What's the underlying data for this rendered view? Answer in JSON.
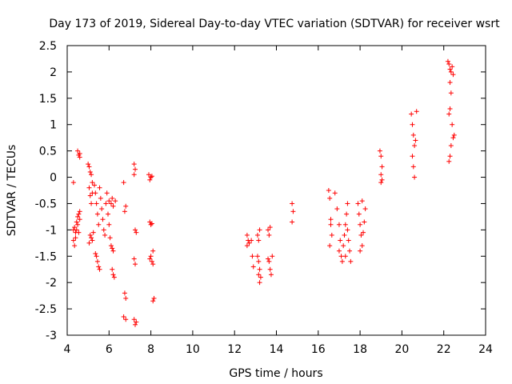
{
  "chart_data": {
    "type": "scatter",
    "title": "Day 173 of 2019, Sidereal Day-to-day VTEC variation (SDTVAR) for receiver wsrt",
    "xlabel": "GPS time / hours",
    "ylabel": "SDTVAR / TECUs",
    "xlim": [
      4,
      24
    ],
    "ylim": [
      -3,
      2.5
    ],
    "xticks": [
      4,
      6,
      8,
      10,
      12,
      14,
      16,
      18,
      20,
      22,
      24
    ],
    "yticks": [
      -3,
      -2.5,
      -2,
      -1.5,
      -1,
      -0.5,
      0,
      0.5,
      1,
      1.5,
      2,
      2.5
    ],
    "xtick_labels": [
      "4",
      "6",
      "8",
      "10",
      "12",
      "14",
      "16",
      "18",
      "20",
      "22",
      "24"
    ],
    "ytick_labels": [
      "-3",
      "-2.5",
      "-2",
      "-1.5",
      "-1",
      "-0.5",
      "0",
      "0.5",
      "1",
      "1.5",
      "2",
      "2.5"
    ],
    "marker": "plus",
    "color": "#ff0000",
    "series": [
      {
        "name": "SDTVAR",
        "points": [
          [
            4.3,
            -0.1
          ],
          [
            4.3,
            -1.0
          ],
          [
            4.3,
            -1.2
          ],
          [
            4.35,
            -0.95
          ],
          [
            4.35,
            -1.3
          ],
          [
            4.4,
            -1.05
          ],
          [
            4.4,
            -1.15
          ],
          [
            4.45,
            -0.85
          ],
          [
            4.45,
            -1.0
          ],
          [
            4.5,
            -0.75
          ],
          [
            4.5,
            -0.9
          ],
          [
            4.55,
            -0.7
          ],
          [
            4.55,
            -1.05
          ],
          [
            4.6,
            -0.8
          ],
          [
            4.6,
            -0.65
          ],
          [
            4.5,
            0.5
          ],
          [
            4.55,
            0.42
          ],
          [
            4.6,
            0.45
          ],
          [
            4.6,
            0.38
          ],
          [
            5.0,
            0.25
          ],
          [
            5.05,
            0.2
          ],
          [
            5.1,
            0.1
          ],
          [
            5.15,
            0.05
          ],
          [
            5.2,
            -0.1
          ],
          [
            5.05,
            -0.2
          ],
          [
            5.1,
            -0.35
          ],
          [
            5.15,
            -0.5
          ],
          [
            5.2,
            -0.3
          ],
          [
            5.1,
            -1.1
          ],
          [
            5.15,
            -1.15
          ],
          [
            5.2,
            -1.2
          ],
          [
            5.05,
            -1.25
          ],
          [
            5.25,
            -1.05
          ],
          [
            5.3,
            -0.15
          ],
          [
            5.35,
            -0.3
          ],
          [
            5.4,
            -0.5
          ],
          [
            5.45,
            -0.7
          ],
          [
            5.5,
            -0.9
          ],
          [
            5.4,
            -1.5
          ],
          [
            5.45,
            -1.6
          ],
          [
            5.5,
            -1.7
          ],
          [
            5.55,
            -1.75
          ],
          [
            5.35,
            -1.45
          ],
          [
            5.55,
            -0.2
          ],
          [
            5.6,
            -0.4
          ],
          [
            5.65,
            -0.6
          ],
          [
            5.7,
            -0.8
          ],
          [
            5.75,
            -1.0
          ],
          [
            5.8,
            -1.1
          ],
          [
            5.85,
            -0.5
          ],
          [
            5.9,
            -0.3
          ],
          [
            5.95,
            -0.7
          ],
          [
            6.0,
            -0.9
          ],
          [
            6.05,
            -1.15
          ],
          [
            6.0,
            -0.45
          ],
          [
            6.1,
            -0.5
          ],
          [
            6.15,
            -0.4
          ],
          [
            6.2,
            -0.55
          ],
          [
            6.1,
            -1.3
          ],
          [
            6.15,
            -1.35
          ],
          [
            6.2,
            -1.4
          ],
          [
            6.15,
            -1.75
          ],
          [
            6.2,
            -1.85
          ],
          [
            6.25,
            -1.9
          ],
          [
            6.3,
            -0.45
          ],
          [
            6.7,
            -0.1
          ],
          [
            6.75,
            -0.65
          ],
          [
            6.8,
            -0.55
          ],
          [
            6.75,
            -2.2
          ],
          [
            6.8,
            -2.3
          ],
          [
            6.7,
            -2.65
          ],
          [
            6.8,
            -2.7
          ],
          [
            7.2,
            0.25
          ],
          [
            7.25,
            0.15
          ],
          [
            7.2,
            0.05
          ],
          [
            7.25,
            -1.0
          ],
          [
            7.3,
            -1.05
          ],
          [
            7.2,
            -1.55
          ],
          [
            7.25,
            -1.65
          ],
          [
            7.2,
            -2.7
          ],
          [
            7.3,
            -2.75
          ],
          [
            7.25,
            -2.8
          ],
          [
            7.9,
            0.05
          ],
          [
            7.95,
            -0.05
          ],
          [
            8.0,
            0.0
          ],
          [
            8.05,
            0.02
          ],
          [
            7.95,
            -0.85
          ],
          [
            8.0,
            -0.9
          ],
          [
            8.05,
            -0.88
          ],
          [
            8.1,
            -1.4
          ],
          [
            8.0,
            -1.5
          ],
          [
            8.05,
            -1.6
          ],
          [
            8.1,
            -1.65
          ],
          [
            7.95,
            -1.55
          ],
          [
            8.15,
            -2.3
          ],
          [
            8.1,
            -2.35
          ],
          [
            12.6,
            -1.1
          ],
          [
            12.65,
            -1.2
          ],
          [
            12.7,
            -1.25
          ],
          [
            12.6,
            -1.3
          ],
          [
            12.8,
            -1.2
          ],
          [
            12.85,
            -1.5
          ],
          [
            12.9,
            -1.7
          ],
          [
            13.1,
            -1.1
          ],
          [
            13.15,
            -1.2
          ],
          [
            13.2,
            -1.0
          ],
          [
            13.1,
            -1.5
          ],
          [
            13.15,
            -1.6
          ],
          [
            13.2,
            -1.75
          ],
          [
            13.25,
            -1.9
          ],
          [
            13.2,
            -2.0
          ],
          [
            13.15,
            -1.85
          ],
          [
            13.6,
            -1.0
          ],
          [
            13.65,
            -1.1
          ],
          [
            13.7,
            -0.95
          ],
          [
            13.6,
            -1.55
          ],
          [
            13.65,
            -1.6
          ],
          [
            13.7,
            -1.75
          ],
          [
            13.75,
            -1.85
          ],
          [
            13.8,
            -1.5
          ],
          [
            14.75,
            -0.5
          ],
          [
            14.8,
            -0.65
          ],
          [
            14.75,
            -0.85
          ],
          [
            16.5,
            -0.25
          ],
          [
            16.55,
            -0.4
          ],
          [
            16.6,
            -0.8
          ],
          [
            16.65,
            -1.1
          ],
          [
            16.55,
            -1.3
          ],
          [
            16.6,
            -0.9
          ],
          [
            16.8,
            -0.3
          ],
          [
            16.9,
            -0.6
          ],
          [
            17.0,
            -0.9
          ],
          [
            17.05,
            -1.2
          ],
          [
            17.1,
            -1.5
          ],
          [
            17.15,
            -1.6
          ],
          [
            17.0,
            -1.4
          ],
          [
            17.2,
            -1.3
          ],
          [
            17.25,
            -1.1
          ],
          [
            17.3,
            -0.9
          ],
          [
            17.35,
            -0.7
          ],
          [
            17.4,
            -1.0
          ],
          [
            17.45,
            -1.2
          ],
          [
            17.5,
            -1.4
          ],
          [
            17.55,
            -1.6
          ],
          [
            17.3,
            -1.5
          ],
          [
            17.4,
            -0.5
          ],
          [
            17.9,
            -0.5
          ],
          [
            17.95,
            -0.7
          ],
          [
            18.0,
            -0.9
          ],
          [
            18.05,
            -1.1
          ],
          [
            18.1,
            -1.3
          ],
          [
            18.15,
            -1.05
          ],
          [
            18.2,
            -0.85
          ],
          [
            18.25,
            -0.6
          ],
          [
            18.1,
            -0.45
          ],
          [
            18.0,
            -1.4
          ],
          [
            18.95,
            0.5
          ],
          [
            19.0,
            0.4
          ],
          [
            19.05,
            0.2
          ],
          [
            19.0,
            0.05
          ],
          [
            19.05,
            -0.05
          ],
          [
            19.0,
            -0.1
          ],
          [
            20.45,
            1.2
          ],
          [
            20.5,
            1.0
          ],
          [
            20.55,
            0.8
          ],
          [
            20.6,
            0.6
          ],
          [
            20.5,
            0.4
          ],
          [
            20.55,
            0.2
          ],
          [
            20.6,
            0.0
          ],
          [
            20.65,
            0.7
          ],
          [
            20.7,
            1.25
          ],
          [
            22.2,
            2.2
          ],
          [
            22.25,
            2.15
          ],
          [
            22.3,
            2.05
          ],
          [
            22.35,
            2.0
          ],
          [
            22.4,
            2.1
          ],
          [
            22.45,
            1.95
          ],
          [
            22.3,
            1.8
          ],
          [
            22.35,
            1.6
          ],
          [
            22.3,
            1.3
          ],
          [
            22.25,
            1.2
          ],
          [
            22.4,
            1.0
          ],
          [
            22.45,
            0.75
          ],
          [
            22.5,
            0.8
          ],
          [
            22.35,
            0.6
          ],
          [
            22.3,
            0.4
          ],
          [
            22.25,
            0.3
          ]
        ]
      }
    ]
  }
}
